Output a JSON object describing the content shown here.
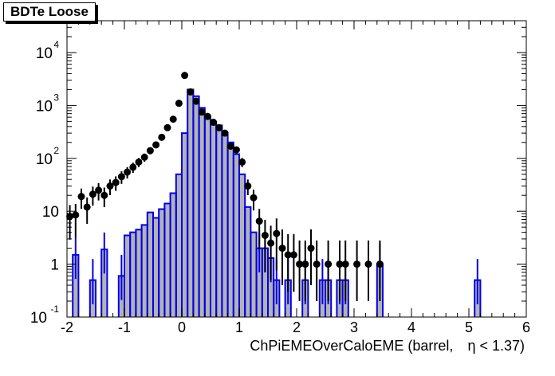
{
  "chart_data": {
    "type": "histogram",
    "title": "BDTe Loose",
    "xlabel_pre": "ChPiEMEOverCaloEME (barrel,",
    "xlabel_post": "η < 1.37)",
    "xlim": [
      -2,
      6
    ],
    "ylim": [
      0.1,
      40000
    ],
    "yscale": "log",
    "x_ticks": [
      "-2",
      "-1",
      "0",
      "1",
      "2",
      "3",
      "4",
      "5",
      "6"
    ],
    "y_ticks": [
      {
        "base": "10",
        "exp": "-1",
        "value": 0.1
      },
      {
        "base": "1",
        "exp": "",
        "value": 1
      },
      {
        "base": "10",
        "exp": "",
        "value": 10
      },
      {
        "base": "10",
        "exp": "2",
        "value": 100
      },
      {
        "base": "10",
        "exp": "3",
        "value": 1000
      },
      {
        "base": "10",
        "exp": "4",
        "value": 10000
      }
    ],
    "bin_width": 0.1,
    "hist_color": "#0000ee",
    "fill_color": "#b3b3b3",
    "marker_color": "#000000",
    "histogram": [
      [
        -1.9,
        1.5
      ],
      [
        -1.8,
        0.1
      ],
      [
        -1.7,
        0.1
      ],
      [
        -1.6,
        0.5
      ],
      [
        -1.5,
        0.1
      ],
      [
        -1.4,
        1.9
      ],
      [
        -1.3,
        0.1
      ],
      [
        -1.2,
        0.1
      ],
      [
        -1.1,
        0.6
      ],
      [
        -1.0,
        3.5
      ],
      [
        -0.9,
        4.0
      ],
      [
        -0.8,
        4.5
      ],
      [
        -0.7,
        5.5
      ],
      [
        -0.6,
        9.5
      ],
      [
        -0.5,
        7.5
      ],
      [
        -0.4,
        11
      ],
      [
        -0.3,
        14
      ],
      [
        -0.2,
        22
      ],
      [
        -0.1,
        50
      ],
      [
        0.0,
        300
      ],
      [
        0.1,
        2000
      ],
      [
        0.2,
        1500
      ],
      [
        0.3,
        900
      ],
      [
        0.4,
        600
      ],
      [
        0.5,
        450
      ],
      [
        0.6,
        420
      ],
      [
        0.7,
        300
      ],
      [
        0.8,
        200
      ],
      [
        0.9,
        120
      ],
      [
        1.0,
        50
      ],
      [
        1.1,
        12
      ],
      [
        1.2,
        4
      ],
      [
        1.3,
        2
      ],
      [
        1.4,
        2
      ],
      [
        1.5,
        1.3
      ],
      [
        1.6,
        0.5
      ],
      [
        1.7,
        0.1
      ],
      [
        1.8,
        0.5
      ],
      [
        1.9,
        0.1
      ],
      [
        2.0,
        0.1
      ],
      [
        2.1,
        0.5
      ],
      [
        2.2,
        0.1
      ],
      [
        2.3,
        0.1
      ],
      [
        2.4,
        0.5
      ],
      [
        2.5,
        0.5
      ],
      [
        2.6,
        0.1
      ],
      [
        2.7,
        0.5
      ],
      [
        2.8,
        0.5
      ],
      [
        2.9,
        0.1
      ],
      [
        3.0,
        0.1
      ],
      [
        3.1,
        0.1
      ],
      [
        3.2,
        0.1
      ],
      [
        3.3,
        0.1
      ],
      [
        3.4,
        1.0
      ],
      [
        3.5,
        0.1
      ],
      [
        5.1,
        0.5
      ]
    ],
    "points": [
      [
        -1.95,
        8
      ],
      [
        -1.85,
        8.5
      ],
      [
        -1.75,
        19
      ],
      [
        -1.65,
        12
      ],
      [
        -1.55,
        21
      ],
      [
        -1.45,
        25
      ],
      [
        -1.35,
        20
      ],
      [
        -1.25,
        30
      ],
      [
        -1.15,
        35
      ],
      [
        -1.05,
        45
      ],
      [
        -0.95,
        55
      ],
      [
        -0.85,
        68
      ],
      [
        -0.75,
        85
      ],
      [
        -0.65,
        105
      ],
      [
        -0.55,
        140
      ],
      [
        -0.45,
        180
      ],
      [
        -0.35,
        250
      ],
      [
        -0.25,
        380
      ],
      [
        -0.15,
        550
      ],
      [
        -0.05,
        1100
      ],
      [
        0.05,
        3700
      ],
      [
        0.15,
        1800
      ],
      [
        0.25,
        1200
      ],
      [
        0.35,
        750
      ],
      [
        0.45,
        620
      ],
      [
        0.55,
        480
      ],
      [
        0.65,
        380
      ],
      [
        0.75,
        300
      ],
      [
        0.85,
        170
      ],
      [
        0.95,
        145
      ],
      [
        1.05,
        85
      ],
      [
        1.15,
        30
      ],
      [
        1.25,
        18
      ],
      [
        1.35,
        6.5
      ],
      [
        1.45,
        3.5
      ],
      [
        1.55,
        2.5
      ],
      [
        1.65,
        3.8
      ],
      [
        1.75,
        2
      ],
      [
        1.85,
        1.5
      ],
      [
        1.95,
        1.5
      ],
      [
        2.05,
        1.0
      ],
      [
        2.15,
        1.0
      ],
      [
        2.25,
        2.0
      ],
      [
        2.35,
        1.0
      ],
      [
        2.55,
        1.0
      ],
      [
        2.75,
        1.0
      ],
      [
        2.85,
        1.0
      ],
      [
        3.05,
        1.0
      ],
      [
        3.25,
        1.0
      ],
      [
        3.45,
        1.0
      ]
    ]
  }
}
